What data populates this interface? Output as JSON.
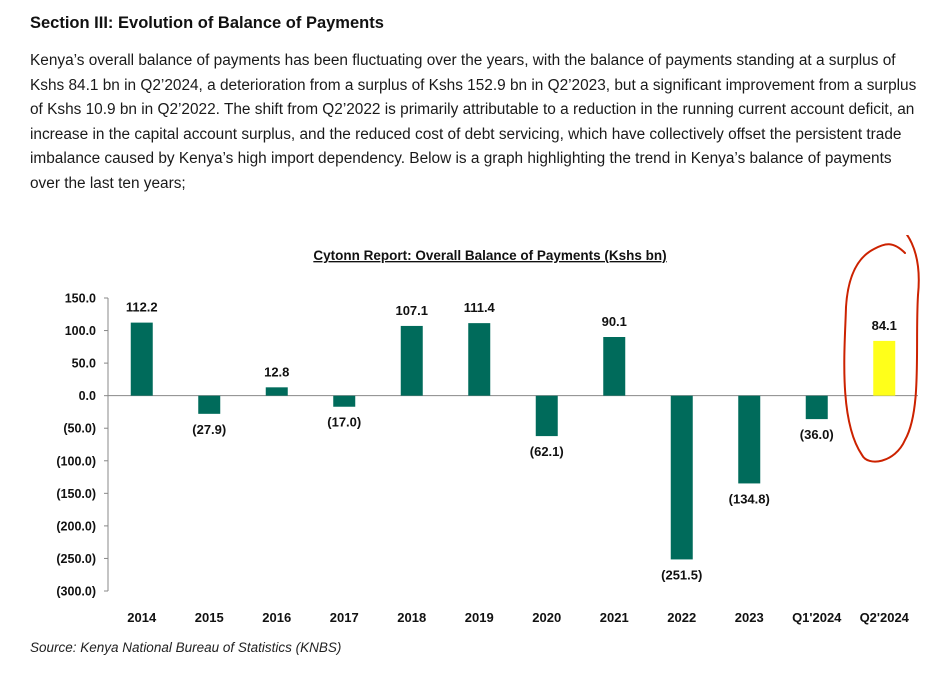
{
  "section_heading": "Section III: Evolution of Balance of Payments",
  "paragraph": "Kenya’s overall balance of payments has been fluctuating over the years, with the balance of payments standing at a surplus of Kshs 84.1 bn in Q2’2024, a deterioration from a surplus of Kshs 152.9 bn in Q2’2023, but a significant improvement from a surplus of Kshs 10.9 bn in Q2’2022. The shift from Q2’2022 is primarily attributable to a reduction in the running current account deficit, an increase in the capital account surplus, and the reduced cost of debt servicing, which have collectively offset the persistent trade imbalance caused by Kenya’s high import dependency. Below is a graph highlighting the trend in Kenya’s balance of payments over the last ten years;",
  "source": "Source: Kenya National Bureau of Statistics (KNBS)",
  "chart_data": {
    "type": "bar",
    "title": "Cytonn Report: Overall Balance of Payments (Kshs bn)",
    "categories": [
      "2014",
      "2015",
      "2016",
      "2017",
      "2018",
      "2019",
      "2020",
      "2021",
      "2022",
      "2023",
      "Q1'2024",
      "Q2'2024"
    ],
    "values": [
      112.2,
      -27.9,
      12.8,
      -17.0,
      107.1,
      111.4,
      -62.1,
      90.1,
      -251.5,
      -134.8,
      -36.0,
      84.1
    ],
    "data_labels": [
      "112.2",
      "(27.9)",
      "12.8",
      "(17.0)",
      "107.1",
      "111.4",
      "(62.1)",
      "90.1",
      "(251.5)",
      "(134.8)",
      "(36.0)",
      "84.1"
    ],
    "ylim": [
      -300,
      150
    ],
    "yticks": [
      150,
      100,
      50,
      0,
      -50,
      -100,
      -150,
      -200,
      -250,
      -300
    ],
    "ytick_labels": [
      "150.0",
      "100.0",
      "50.0",
      "0.0",
      "(50.0)",
      "(100.0)",
      "(150.0)",
      "(200.0)",
      "(250.0)",
      "(300.0)"
    ],
    "xlabel": "",
    "ylabel": "",
    "grid": false,
    "legend": "none",
    "colors": {
      "bar": "#006b5b",
      "highlight": "#ffff1a",
      "highlight_circle": "#cc2200"
    },
    "highlight_index": 11
  }
}
